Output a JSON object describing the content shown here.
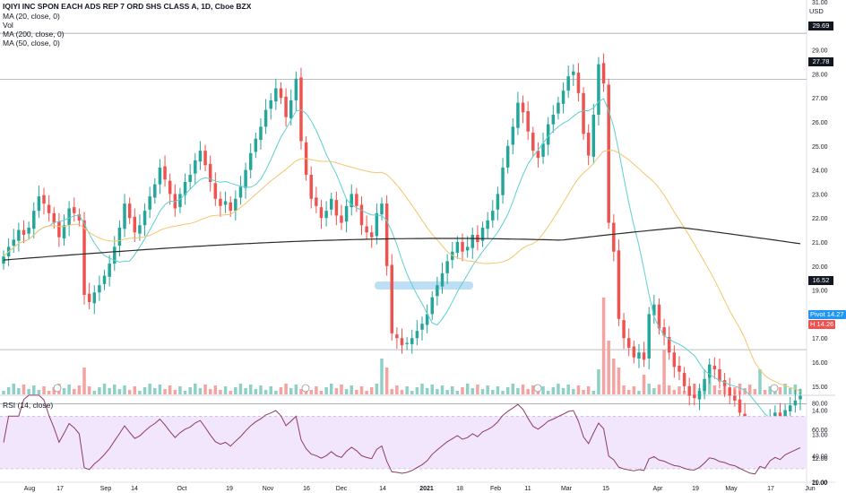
{
  "legend": {
    "title": "IQIYI INC SPON EACH ADS REP 7 ORD SHS CLASS A, 1D, Cboe BZX",
    "vol": "Vol",
    "ma20": "MA (20, close, 0)",
    "ma200": "MA (200, close, 0)",
    "ma50": "MA (50, close, 0)"
  },
  "rsi_label": "RSI (14, close)",
  "currency": "USD",
  "badges": {
    "pivot_label": "Pivot",
    "pivot_value": "14.27",
    "last_label": "H",
    "last_value": "14.26"
  },
  "price_lines": {
    "level_1": "29.69",
    "level_2": "27.78",
    "level_3": "16.52"
  },
  "colors": {
    "up": "#26a69a",
    "down": "#ef5350",
    "ma20": "#5ecfd1",
    "ma50": "#f5c56b",
    "ma200": "#2a2a2a",
    "rsi_line": "#8e3a6b",
    "rsi_band": "#f2e6fc",
    "vol_up": "#8fd0c6",
    "vol_down": "#f4a3a1",
    "support_zone": "#bcdff5",
    "pivot": "#2196f3"
  },
  "chart_data": [
    {
      "type": "candlestick",
      "title": "IQIYI INC SPON EACH ADS REP 7 ORD SHS CLASS A, 1D, Cboe BZX",
      "x_tick_labels": [
        "Aug",
        "17",
        "Sep",
        "14",
        "Oct",
        "19",
        "Nov",
        "16",
        "Dec",
        "14",
        "2021",
        "18",
        "Feb",
        "11",
        "Mar",
        "15",
        "Apr",
        "19",
        "May",
        "17",
        "Jun"
      ],
      "y_tick_labels": [
        "31.00",
        "30.00",
        "29.00",
        "28.00",
        "27.00",
        "26.00",
        "25.00",
        "24.00",
        "23.00",
        "22.00",
        "21.00",
        "20.00",
        "19.00",
        "18.00",
        "17.00",
        "16.00",
        "15.00",
        "14.00",
        "13.00",
        "12.00",
        "11.00"
      ],
      "ylim": [
        10.6,
        31.5
      ],
      "grid": false,
      "series_closes": [
        20.4,
        20.8,
        21.1,
        21.5,
        21.3,
        21.6,
        22.3,
        22.9,
        22.6,
        22.2,
        21.8,
        21.2,
        21.7,
        22.4,
        22.2,
        21.9,
        18.8,
        18.5,
        18.9,
        19.2,
        19.6,
        20.1,
        20.8,
        21.6,
        22.6,
        22.0,
        21.4,
        21.7,
        22.3,
        22.9,
        23.4,
        24.1,
        23.6,
        23.0,
        22.4,
        23.0,
        23.5,
        23.8,
        24.4,
        24.8,
        24.2,
        23.5,
        22.8,
        22.5,
        22.7,
        22.3,
        22.8,
        23.3,
        24.0,
        24.7,
        25.3,
        25.8,
        26.5,
        26.9,
        27.4,
        27.0,
        26.2,
        26.9,
        27.8,
        25.2,
        23.8,
        22.8,
        22.5,
        22.0,
        22.3,
        22.8,
        22.1,
        21.8,
        22.5,
        23.0,
        22.5,
        21.7,
        21.4,
        21.2,
        22.2,
        22.6,
        20.0,
        17.2,
        17.0,
        16.7,
        16.8,
        17.0,
        17.3,
        17.6,
        18.0,
        18.7,
        19.2,
        19.7,
        20.2,
        20.6,
        21.0,
        20.6,
        20.8,
        21.3,
        21.0,
        21.6,
        21.9,
        22.3,
        23.0,
        24.1,
        25.0,
        25.8,
        26.8,
        26.4,
        25.6,
        24.8,
        24.5,
        25.1,
        25.9,
        26.3,
        26.8,
        27.3,
        27.9,
        28.1,
        27.2,
        25.5,
        24.6,
        26.3,
        28.4,
        27.6,
        21.8,
        20.6,
        17.8,
        17.0,
        16.6,
        16.2,
        16.4,
        16.1,
        18.0,
        18.4,
        17.4,
        17.1,
        16.4,
        15.8,
        15.6,
        15.0,
        14.6,
        14.5,
        14.8,
        15.3,
        15.9,
        15.7,
        15.2,
        15.0,
        14.6,
        14.4,
        13.9,
        13.4,
        12.9,
        12.7,
        13.3,
        13.0,
        13.6,
        13.9,
        13.6,
        14.0,
        14.2,
        14.4,
        14.6
      ]
    },
    {
      "type": "line",
      "title": "RSI (14, close)",
      "y_tick_labels": [
        "80.00",
        "60.00",
        "40.00",
        "20.00"
      ],
      "ylim": [
        17,
        90
      ],
      "bands": [
        30,
        70
      ]
    }
  ]
}
